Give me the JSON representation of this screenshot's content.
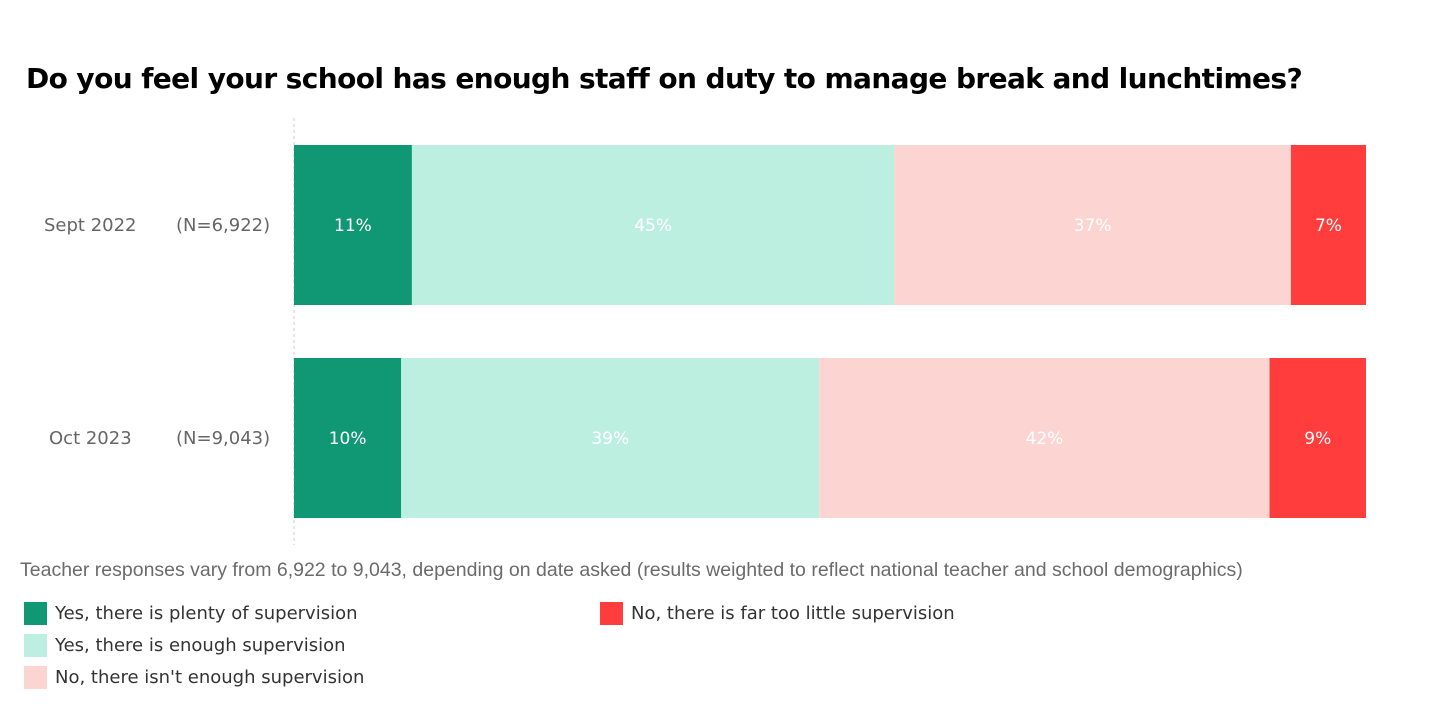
{
  "chart_data": {
    "type": "bar",
    "orientation": "horizontal",
    "stacked": true,
    "title": "Do you feel your school has enough staff on duty to manage break and lunchtimes?",
    "categories": [
      "Sept 2022",
      "Oct 2023"
    ],
    "sample_sizes": [
      "(N=6,922)",
      "(N=9,043)"
    ],
    "series": [
      {
        "name": "Yes, there is plenty of supervision",
        "color": "#109874",
        "values": [
          11,
          10
        ],
        "labels": [
          "11%",
          "10%"
        ]
      },
      {
        "name": "Yes, there is enough supervision",
        "color": "#BDEFE0",
        "values": [
          45,
          39
        ],
        "labels": [
          "45%",
          "39%"
        ]
      },
      {
        "name": "No, there isn't enough supervision",
        "color": "#FCD5D3",
        "values": [
          37,
          42
        ],
        "labels": [
          "37%",
          "42%"
        ]
      },
      {
        "name": "No, there is far too little supervision",
        "color": "#FF3D3D",
        "values": [
          7,
          9
        ],
        "labels": [
          "7%",
          "9%"
        ]
      }
    ],
    "xlim": [
      0,
      100
    ],
    "xlabel": "",
    "ylabel": "",
    "grid": false,
    "legend_position": "bottom"
  },
  "note": "Teacher responses vary from 6,922 to 9,043, depending on date asked (results weighted to reflect national teacher and school demographics)"
}
